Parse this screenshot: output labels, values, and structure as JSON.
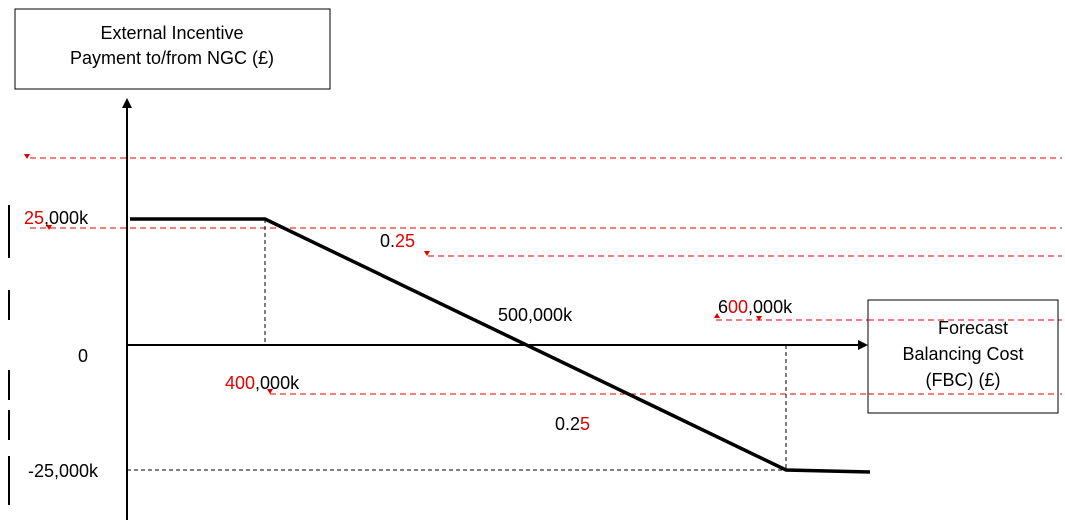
{
  "y_axis_box": {
    "line1": "External Incentive",
    "line2": "Payment to/from NGC (£)"
  },
  "x_axis_box": {
    "line1": "Forecast",
    "line2": "Balancing Cost",
    "line3": "(FBC) (£)"
  },
  "labels": {
    "cap_upper": {
      "red": "25",
      "black": ",000k"
    },
    "zero": "0",
    "cap_lower": "-25,000k",
    "slope_upper": {
      "black": "0.",
      "red": "25"
    },
    "slope_lower": {
      "black": "0.2",
      "red": "5"
    },
    "target": "500,000k",
    "threshold_low": {
      "red": "400",
      "black": ",000k"
    },
    "threshold_high": {
      "black1": "6",
      "red": "00",
      "black2": ",000k"
    }
  },
  "colors": {
    "line": "#000000",
    "revision": "#e00000"
  }
}
